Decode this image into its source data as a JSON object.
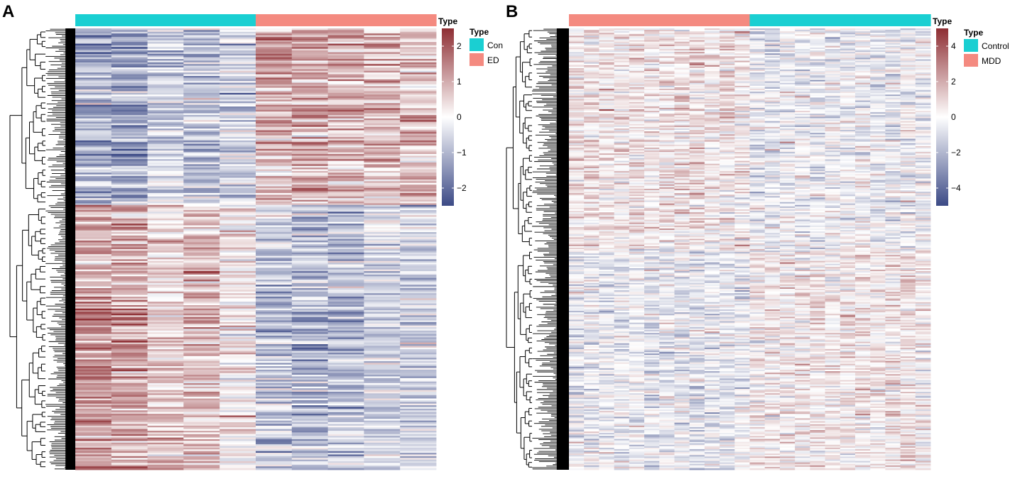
{
  "colors": {
    "control": "#1ACFD2",
    "disease": "#F48A80",
    "low": "#3C4A86",
    "mid": "#FFFFFF",
    "high": "#8E2E33"
  },
  "chart_data": [
    {
      "type": "heatmap",
      "panel_label": "A",
      "annotation_title": "Type",
      "groups_in_order": [
        "Con",
        "Con",
        "Con",
        "Con",
        "Con",
        "ED",
        "ED",
        "ED",
        "ED",
        "ED"
      ],
      "n_samples": 10,
      "legend_title": "Type",
      "legend_entries": [
        {
          "label": "Con",
          "group": "control"
        },
        {
          "label": "ED",
          "group": "disease"
        }
      ],
      "color_scale": {
        "range": [
          -2.5,
          2.5
        ],
        "ticks": [
          {
            "value": 2,
            "label": "2"
          },
          {
            "value": 1,
            "label": "1"
          },
          {
            "value": 0,
            "label": "0"
          },
          {
            "value": -1,
            "label": "−1"
          },
          {
            "value": -2,
            "label": "−2"
          }
        ]
      },
      "row_clusters": [
        {
          "fraction": 0.4,
          "column_means": [
            -1.2,
            -1.3,
            -0.7,
            -0.8,
            -0.6,
            1.0,
            1.2,
            1.0,
            0.9,
            0.7
          ]
        },
        {
          "fraction": 0.6,
          "column_means": [
            1.2,
            1.1,
            0.6,
            0.8,
            0.2,
            -0.8,
            -1.0,
            -0.9,
            -0.6,
            -0.6
          ]
        }
      ]
    },
    {
      "type": "heatmap",
      "panel_label": "B",
      "annotation_title": "Type",
      "groups_in_order": [
        "MDD",
        "MDD",
        "MDD",
        "MDD",
        "MDD",
        "MDD",
        "MDD",
        "MDD",
        "MDD",
        "MDD",
        "MDD",
        "MDD",
        "Control",
        "Control",
        "Control",
        "Control",
        "Control",
        "Control",
        "Control",
        "Control",
        "Control",
        "Control",
        "Control",
        "Control"
      ],
      "n_samples": 24,
      "legend_title": "Type",
      "legend_entries": [
        {
          "label": "Control",
          "group": "control"
        },
        {
          "label": "MDD",
          "group": "disease"
        }
      ],
      "color_scale": {
        "range": [
          -5,
          5
        ],
        "ticks": [
          {
            "value": 4,
            "label": "4"
          },
          {
            "value": 2,
            "label": "2"
          },
          {
            "value": 0,
            "label": "0"
          },
          {
            "value": -2,
            "label": "−2"
          },
          {
            "value": -4,
            "label": "−4"
          }
        ]
      },
      "row_clusters": [
        {
          "fraction": 0.5,
          "column_means": [
            0.6,
            0.7,
            0.5,
            0.5,
            0.6,
            0.4,
            0.5,
            0.6,
            0.7,
            0.5,
            0.6,
            0.4,
            -0.4,
            -0.5,
            -0.3,
            -0.4,
            -0.5,
            -0.3,
            -0.4,
            -0.3,
            -0.5,
            -0.4,
            -0.3,
            -0.4
          ]
        },
        {
          "fraction": 0.5,
          "column_means": [
            -0.5,
            -0.6,
            -0.4,
            -0.5,
            -0.4,
            -0.6,
            -0.4,
            -0.5,
            -0.7,
            -0.5,
            -0.6,
            -0.4,
            0.4,
            0.5,
            0.3,
            0.4,
            0.5,
            0.3,
            0.4,
            0.5,
            0.3,
            0.4,
            0.5,
            0.3
          ]
        }
      ]
    }
  ]
}
